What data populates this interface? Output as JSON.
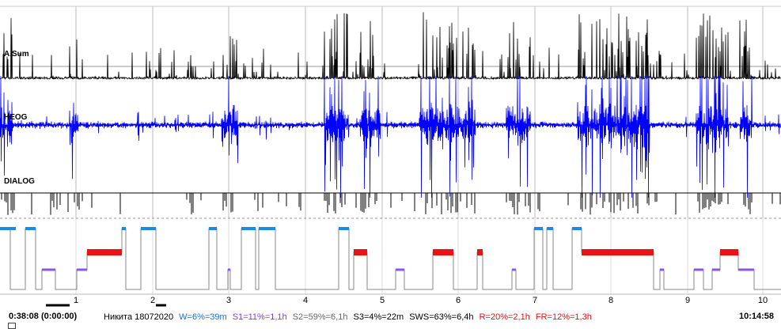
{
  "channels": [
    {
      "id": "asum",
      "label": "A.Sum",
      "color": "#000000"
    },
    {
      "id": "heog",
      "label": "HEOG",
      "color": "#0000ff"
    },
    {
      "id": "dialog",
      "label": "DIALOG",
      "color": "#000000"
    }
  ],
  "time_axis": {
    "ticks": [
      "1",
      "2",
      "3",
      "4",
      "5",
      "6",
      "7",
      "8",
      "9",
      "10"
    ],
    "start_label": "0:38:08 (0:00:00)",
    "end_label": "10:14:58"
  },
  "hypnogram": {
    "wake_color": "#1e88e5",
    "rem_color": "#ee1111",
    "s1_color": "#8855ee",
    "trace_color": "#888888"
  },
  "status": {
    "subject": "Никита 18072020",
    "stats": [
      {
        "text": "W=6%=39m",
        "color": "#1e6fd0"
      },
      {
        "text": "S1=11%=1,1h",
        "color": "#7a3fe0"
      },
      {
        "text": "S2=59%=6,1h",
        "color": "#666666"
      },
      {
        "text": "S3=4%=22m",
        "color": "#000000"
      },
      {
        "text": "SWS=63%=6,4h",
        "color": "#000000"
      },
      {
        "text": "R=20%=2,1h",
        "color": "#e01010"
      },
      {
        "text": "FR=12%=1,3h",
        "color": "#e01010"
      }
    ]
  }
}
